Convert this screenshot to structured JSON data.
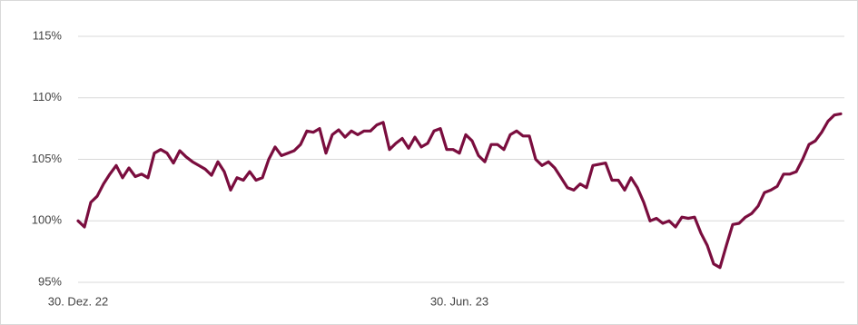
{
  "chart_data": {
    "type": "line",
    "categories": [
      "30. Dez. 22",
      null,
      null,
      null,
      null,
      null,
      null,
      null,
      null,
      null,
      null,
      null,
      null,
      null,
      null,
      null,
      null,
      null,
      null,
      null,
      null,
      null,
      null,
      null,
      null,
      null,
      null,
      null,
      null,
      null,
      null,
      null,
      null,
      null,
      null,
      null,
      null,
      null,
      null,
      null,
      null,
      null,
      null,
      null,
      null,
      null,
      null,
      null,
      null,
      null,
      null,
      null,
      null,
      null,
      null,
      null,
      null,
      null,
      null,
      null,
      "30. Jun. 23",
      null,
      null,
      null,
      null,
      null,
      null,
      null,
      null,
      null,
      null,
      null,
      null,
      null,
      null,
      null,
      null,
      null,
      null,
      null,
      null,
      null,
      null,
      null,
      null,
      null,
      null,
      null,
      null,
      null,
      null,
      null,
      null,
      null,
      null,
      null,
      null,
      null,
      null,
      null,
      null,
      null,
      null,
      null,
      null,
      null,
      null,
      null,
      null,
      null,
      null,
      null,
      null,
      null,
      null,
      null,
      null,
      null,
      null,
      null,
      null
    ],
    "series": [
      {
        "color": "#7a0d3e",
        "values": [
          100,
          99.5,
          101.5,
          102,
          103,
          103.8,
          104.5,
          103.5,
          104.3,
          103.6,
          103.8,
          103.5,
          105.5,
          105.8,
          105.5,
          104.7,
          105.7,
          105.2,
          104.8,
          104.5,
          104.2,
          103.7,
          104.8,
          104,
          102.5,
          103.5,
          103.3,
          104,
          103.3,
          103.5,
          105,
          106,
          105.3,
          105.5,
          105.7,
          106.2,
          107.3,
          107.2,
          107.5,
          105.5,
          107,
          107.4,
          106.8,
          107.3,
          107,
          107.3,
          107.3,
          107.8,
          108,
          105.8,
          106.3,
          106.7,
          105.9,
          106.8,
          106,
          106.3,
          107.3,
          107.5,
          105.8,
          105.8,
          105.5,
          107,
          106.5,
          105.3,
          104.8,
          106.2,
          106.2,
          105.8,
          107,
          107.3,
          106.9,
          106.9,
          105,
          104.5,
          104.8,
          104.3,
          103.5,
          102.7,
          102.5,
          103,
          102.7,
          104.5,
          104.6,
          104.7,
          103.3,
          103.3,
          102.5,
          103.5,
          102.7,
          101.5,
          100,
          100.2,
          99.8,
          100,
          99.5,
          100.3,
          100.2,
          100.3,
          99,
          98,
          96.5,
          96.2,
          98,
          99.7,
          99.8,
          100.3,
          100.6,
          101.2,
          102.3,
          102.5,
          102.8,
          103.8,
          103.8,
          104,
          105,
          106.2,
          106.5,
          107.2,
          108.1,
          108.6,
          108.7
        ]
      }
    ],
    "ylim": [
      95,
      115
    ],
    "yticks": [
      {
        "value": 95,
        "label": "95%"
      },
      {
        "value": 100,
        "label": "100%"
      },
      {
        "value": 105,
        "label": "105%"
      },
      {
        "value": 110,
        "label": "110%"
      },
      {
        "value": 115,
        "label": "115%"
      }
    ],
    "grid": true
  }
}
